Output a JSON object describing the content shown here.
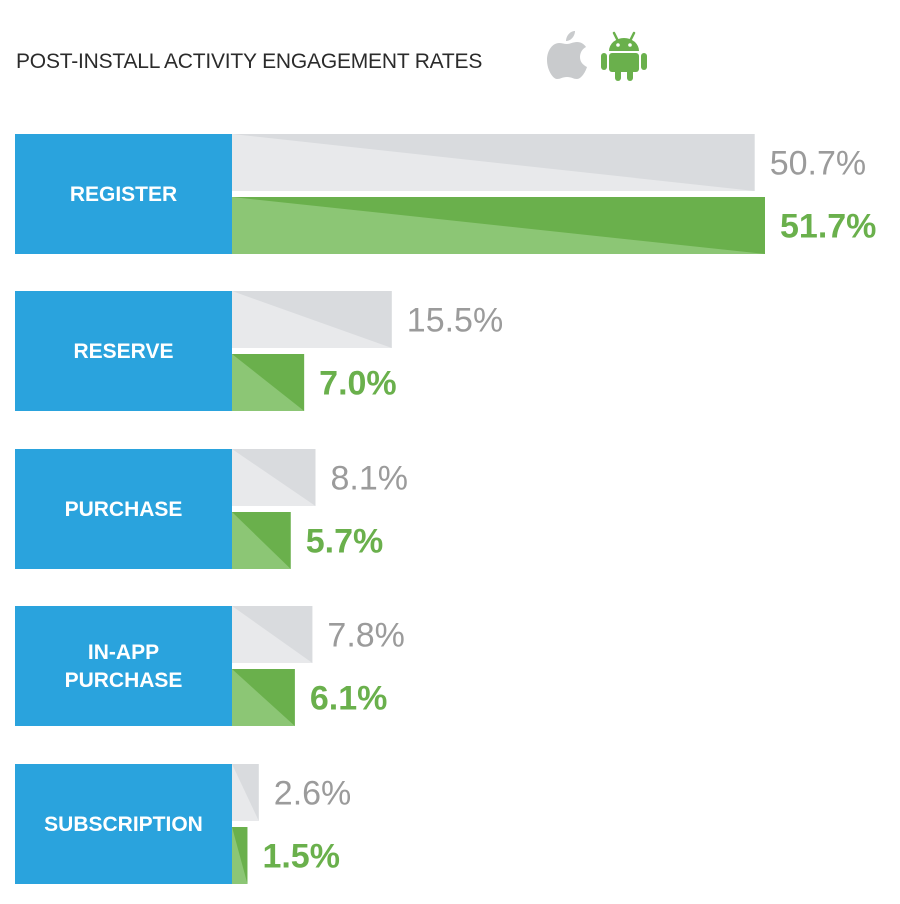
{
  "colors": {
    "category_box": "#2aa3dd",
    "ios_bar": "#d9dbde",
    "ios_bar_shade": "#e8e9eb",
    "android_bar": "#6ab04c",
    "android_bar_shade": "#8cc675",
    "ios_text": "#9b9b9b",
    "android_text": "#6ab04c",
    "title_text": "#2b2b2b"
  },
  "icons": {
    "ios": "apple-icon",
    "android": "android-icon"
  },
  "chart_data": {
    "type": "bar",
    "orientation": "horizontal",
    "title": "POST-INSTALL ACTIVITY ENGAGEMENT RATES",
    "categories": [
      {
        "lines": [
          "REGISTER"
        ]
      },
      {
        "lines": [
          "RESERVE"
        ]
      },
      {
        "lines": [
          "PURCHASE"
        ]
      },
      {
        "lines": [
          "IN-APP",
          "PURCHASE"
        ]
      },
      {
        "lines": [
          "SUBSCRIPTION"
        ]
      }
    ],
    "series": [
      {
        "name": "iOS",
        "values": [
          50.7,
          15.5,
          8.1,
          7.8,
          2.6
        ],
        "labels": [
          "50.7%",
          "15.5%",
          "8.1%",
          "7.8%",
          "2.6%"
        ]
      },
      {
        "name": "Android",
        "values": [
          51.7,
          7.0,
          5.7,
          6.1,
          1.5
        ],
        "labels": [
          "51.7%",
          "7.0%",
          "5.7%",
          "6.1%",
          "1.5%"
        ]
      }
    ],
    "xlim": [
      0,
      51.7
    ],
    "unit": "%"
  }
}
